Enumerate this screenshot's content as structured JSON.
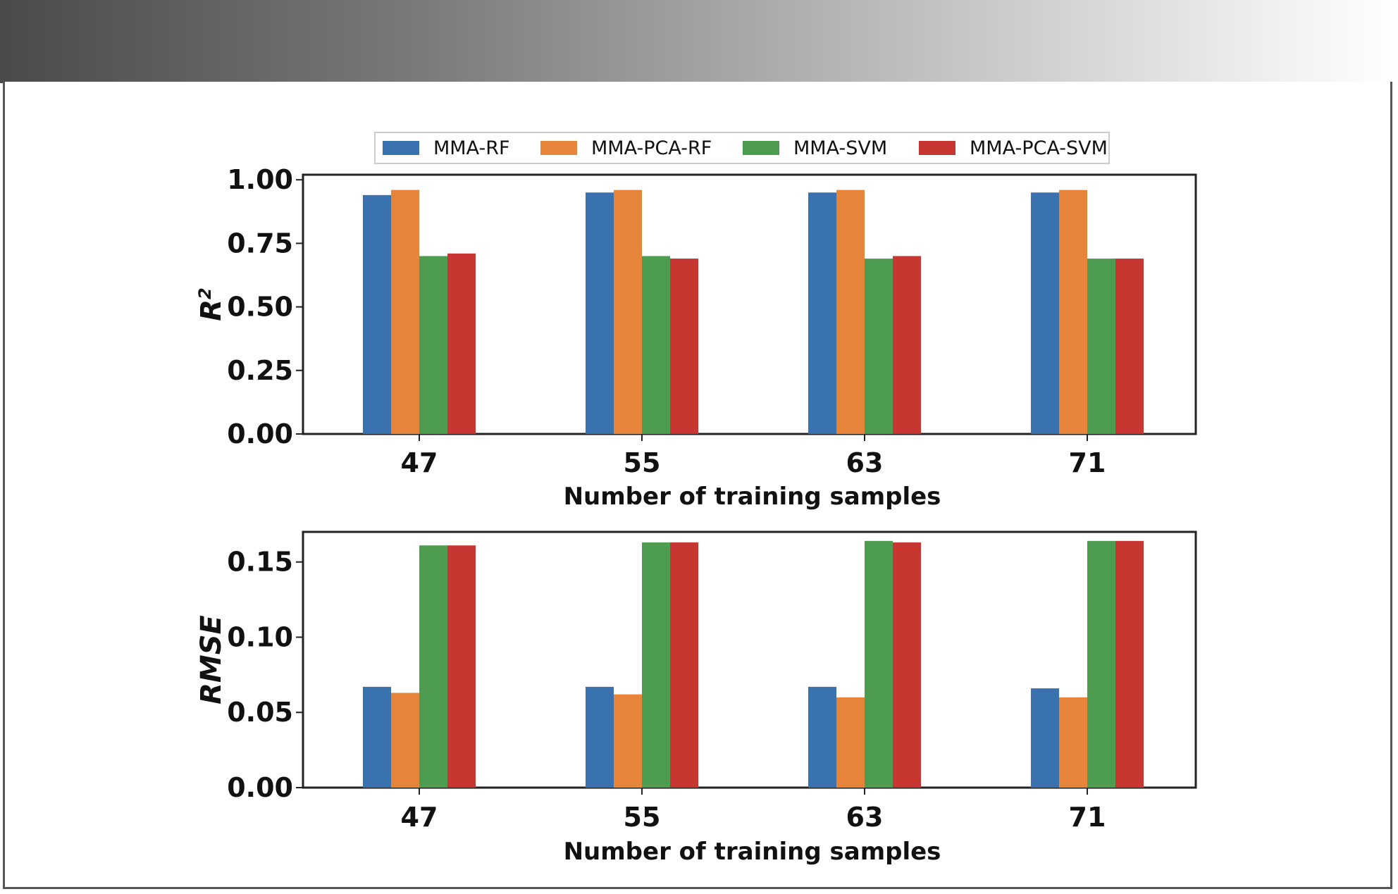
{
  "chart_data": [
    {
      "type": "bar",
      "ylabel": "R",
      "ylabel_superscript": "2",
      "xlabel": "Number of training samples",
      "categories": [
        "47",
        "55",
        "63",
        "71"
      ],
      "ylim": [
        0,
        1.0
      ],
      "yticks": [
        "0.00",
        "0.25",
        "0.50",
        "0.75",
        "1.00"
      ],
      "ytick_values": [
        0,
        0.25,
        0.5,
        0.75,
        1.0
      ],
      "series": [
        {
          "name": "MMA-RF",
          "values": [
            0.94,
            0.95,
            0.95,
            0.95
          ]
        },
        {
          "name": "MMA-PCA-RF",
          "values": [
            0.96,
            0.96,
            0.96,
            0.96
          ]
        },
        {
          "name": "MMA-SVM",
          "values": [
            0.7,
            0.7,
            0.69,
            0.69
          ]
        },
        {
          "name": "MMA-PCA-SVM",
          "values": [
            0.71,
            0.69,
            0.7,
            0.69
          ]
        }
      ]
    },
    {
      "type": "bar",
      "ylabel": "RMSE",
      "xlabel": "Number of training samples",
      "categories": [
        "47",
        "55",
        "63",
        "71"
      ],
      "ylim": [
        0,
        0.17
      ],
      "yticks": [
        "0.00",
        "0.05",
        "0.10",
        "0.15"
      ],
      "ytick_values": [
        0,
        0.05,
        0.1,
        0.15
      ],
      "series": [
        {
          "name": "MMA-RF",
          "values": [
            0.067,
            0.067,
            0.067,
            0.066
          ]
        },
        {
          "name": "MMA-PCA-RF",
          "values": [
            0.063,
            0.062,
            0.06,
            0.06
          ]
        },
        {
          "name": "MMA-SVM",
          "values": [
            0.161,
            0.163,
            0.164,
            0.164
          ]
        },
        {
          "name": "MMA-PCA-SVM",
          "values": [
            0.161,
            0.163,
            0.163,
            0.164
          ]
        }
      ]
    }
  ],
  "legend": {
    "items": [
      {
        "label": "MMA-RF",
        "color": "#3a72b0"
      },
      {
        "label": "MMA-PCA-RF",
        "color": "#e6843a"
      },
      {
        "label": "MMA-SVM",
        "color": "#4e9c50"
      },
      {
        "label": "MMA-PCA-SVM",
        "color": "#c73631"
      }
    ]
  }
}
